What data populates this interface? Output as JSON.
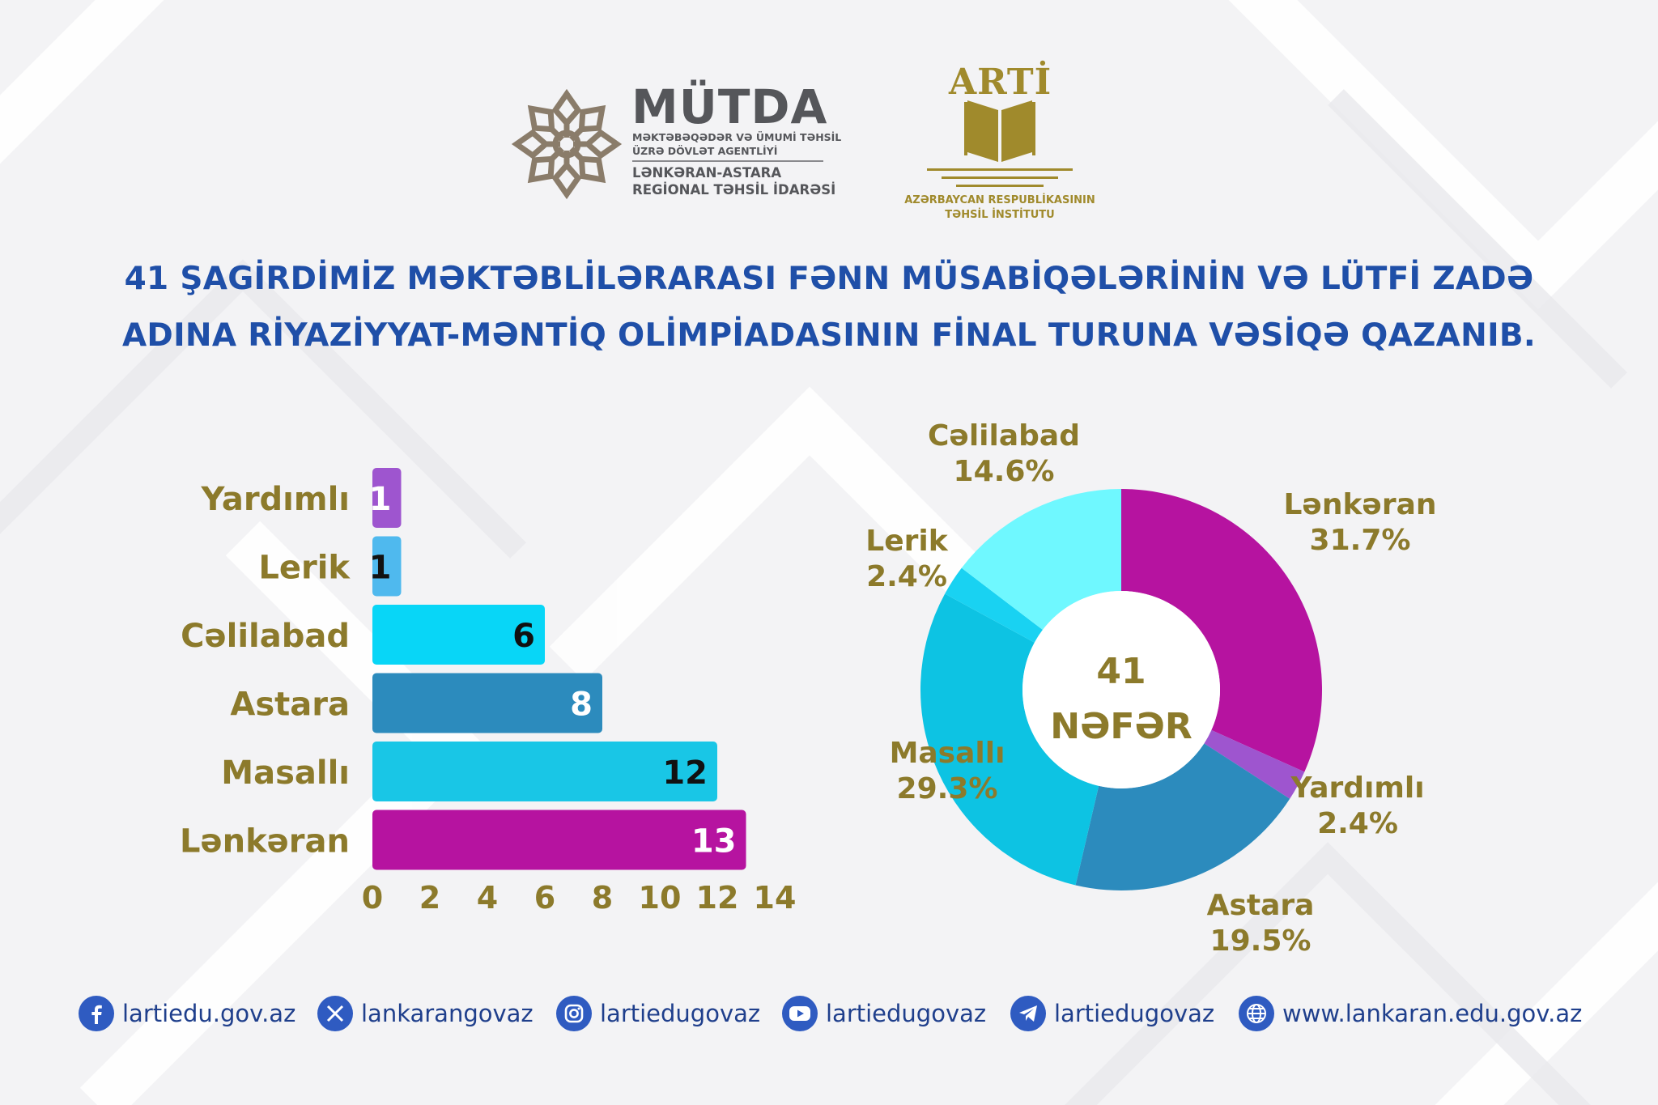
{
  "header": {
    "mutda": {
      "name": "MÜTDA",
      "line1": "MƏKTƏBƏQƏDƏR VƏ ÜMUMİ TƏHSİL",
      "line2": "ÜZRƏ DÖVLƏT AGENTLİYİ",
      "line3": "LƏNKƏRAN-ASTARA",
      "line4": "REGİONAL TƏHSİL İDARƏSİ"
    },
    "arti": {
      "name": "ARTİ",
      "line1": "AZƏRBAYCAN RESPUBLİKASININ",
      "line2": "TƏHSİL İNSTİTUTU"
    }
  },
  "headline": {
    "line1": "41 ŞAGİRDİMİZ MƏKTƏBLİLƏRARASI FƏNN MÜSABİQƏLƏRİNİN VƏ LÜTFİ ZADƏ",
    "line2": "ADINA RİYAZİYYAT-MƏNTİQ OLİMPİADASININ FİNAL TURUNA VƏSİQƏ QAZANIB."
  },
  "colors": {
    "headline": "#1f4fa8",
    "label_gold": "#8c7a2b",
    "yardimli": "#9e55cf",
    "lerik": "#4fb9ee",
    "celilabad": "#08d6f7",
    "astara": "#2c8bbd",
    "masalli": "#19c6e6",
    "lenkeran": "#b613a0",
    "donut_celilabad": "#6ff8ff",
    "donut_lerik": "#19d2f2",
    "donut_masalli": "#0dc3e3"
  },
  "chart_data": [
    {
      "type": "bar",
      "orientation": "horizontal",
      "categories": [
        "Yardımlı",
        "Lerik",
        "Cəlilabad",
        "Astara",
        "Masallı",
        "Lənkəran"
      ],
      "values": [
        1,
        1,
        6,
        8,
        12,
        13
      ],
      "value_labels": [
        "1",
        "1",
        "6",
        "8",
        "12",
        "13"
      ],
      "xlim": [
        0,
        14
      ],
      "x_ticks": [
        "0",
        "2",
        "4",
        "6",
        "8",
        "10",
        "12",
        "14"
      ],
      "grid": false,
      "legend": "none"
    },
    {
      "type": "pie",
      "variant": "donut",
      "center_value": "41",
      "center_label": "NƏFƏR",
      "slices": [
        {
          "label": "Lənkəran",
          "percent_label": "31.7%",
          "value": 13,
          "color": "#b613a0"
        },
        {
          "label": "Yardımlı",
          "percent_label": "2.4%",
          "value": 1,
          "color": "#9e55cf"
        },
        {
          "label": "Astara",
          "percent_label": "19.5%",
          "value": 8,
          "color": "#2c8bbd"
        },
        {
          "label": "Masallı",
          "percent_label": "29.3%",
          "value": 12,
          "color": "#0dc3e3"
        },
        {
          "label": "Lerik",
          "percent_label": "2.4%",
          "value": 1,
          "color": "#19d2f2"
        },
        {
          "label": "Cəlilabad",
          "percent_label": "14.6%",
          "value": 6,
          "color": "#6ff8ff"
        }
      ],
      "legend": "none"
    }
  ],
  "footer": {
    "links": [
      {
        "icon": "facebook-icon",
        "text": "lartiedu.gov.az"
      },
      {
        "icon": "x-icon",
        "text": "lankarangovaz"
      },
      {
        "icon": "instagram-icon",
        "text": "lartiedugovaz"
      },
      {
        "icon": "youtube-icon",
        "text": "lartiedugovaz"
      },
      {
        "icon": "telegram-icon",
        "text": "lartiedugovaz"
      },
      {
        "icon": "globe-icon",
        "text": "www.lankaran.edu.gov.az"
      }
    ]
  }
}
